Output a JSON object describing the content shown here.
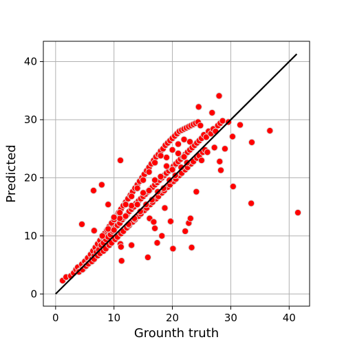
{
  "chart_data": {
    "type": "scatter",
    "title": "",
    "xlabel": "Grounth truth",
    "ylabel": "Predicted",
    "xlim": [
      -2.1,
      43.5
    ],
    "ylim": [
      -2.1,
      43.5
    ],
    "xticks": [
      0,
      10,
      20,
      30,
      40
    ],
    "yticks": [
      0,
      10,
      20,
      30,
      40
    ],
    "grid": true,
    "point_color": "#ff0000",
    "point_edge_color": "#d9d9d9",
    "line_color": "#000000",
    "reference_line": {
      "x": [
        0,
        41.3
      ],
      "y": [
        0,
        41.3
      ]
    },
    "points": [
      [
        1.2,
        2.3
      ],
      [
        1.8,
        2.9
      ],
      [
        2.6,
        3.1
      ],
      [
        3.1,
        3.6
      ],
      [
        3.5,
        4.2
      ],
      [
        3.8,
        4.6
      ],
      [
        4.2,
        4.0
      ],
      [
        4.5,
        5.1
      ],
      [
        4.8,
        4.4
      ],
      [
        5.0,
        5.6
      ],
      [
        5.3,
        5.0
      ],
      [
        5.5,
        6.2
      ],
      [
        5.8,
        5.4
      ],
      [
        6.0,
        6.8
      ],
      [
        6.2,
        6.0
      ],
      [
        6.4,
        7.4
      ],
      [
        6.6,
        6.5
      ],
      [
        6.8,
        8.0
      ],
      [
        7.0,
        7.2
      ],
      [
        7.2,
        8.6
      ],
      [
        7.4,
        7.6
      ],
      [
        7.6,
        9.2
      ],
      [
        7.8,
        8.4
      ],
      [
        8.0,
        9.8
      ],
      [
        8.2,
        8.8
      ],
      [
        8.4,
        10.4
      ],
      [
        8.6,
        9.4
      ],
      [
        8.8,
        11.0
      ],
      [
        9.0,
        9.8
      ],
      [
        9.2,
        11.6
      ],
      [
        9.4,
        10.2
      ],
      [
        9.6,
        12.2
      ],
      [
        9.8,
        10.8
      ],
      [
        10.0,
        12.8
      ],
      [
        10.2,
        11.4
      ],
      [
        10.4,
        13.4
      ],
      [
        10.6,
        11.8
      ],
      [
        10.8,
        14.0
      ],
      [
        11.0,
        12.2
      ],
      [
        11.2,
        14.6
      ],
      [
        11.4,
        12.8
      ],
      [
        11.6,
        15.2
      ],
      [
        11.8,
        13.2
      ],
      [
        12.0,
        15.8
      ],
      [
        12.2,
        13.6
      ],
      [
        12.4,
        16.4
      ],
      [
        12.6,
        14.2
      ],
      [
        12.8,
        17.0
      ],
      [
        13.0,
        14.6
      ],
      [
        13.2,
        17.6
      ],
      [
        13.4,
        15.0
      ],
      [
        13.6,
        18.2
      ],
      [
        13.8,
        15.6
      ],
      [
        14.0,
        18.8
      ],
      [
        14.2,
        16.0
      ],
      [
        14.4,
        19.4
      ],
      [
        14.6,
        16.4
      ],
      [
        14.8,
        20.0
      ],
      [
        15.0,
        16.8
      ],
      [
        15.2,
        20.6
      ],
      [
        15.4,
        17.2
      ],
      [
        15.6,
        21.2
      ],
      [
        15.8,
        17.6
      ],
      [
        16.0,
        21.8
      ],
      [
        16.2,
        18.0
      ],
      [
        16.4,
        22.4
      ],
      [
        16.6,
        18.4
      ],
      [
        16.8,
        23.0
      ],
      [
        17.0,
        18.8
      ],
      [
        17.2,
        23.6
      ],
      [
        17.4,
        19.2
      ],
      [
        17.6,
        24.0
      ],
      [
        17.8,
        19.6
      ],
      [
        18.0,
        24.6
      ],
      [
        18.2,
        20.0
      ],
      [
        18.4,
        25.0
      ],
      [
        18.6,
        20.4
      ],
      [
        18.8,
        25.6
      ],
      [
        19.0,
        20.8
      ],
      [
        19.2,
        26.0
      ],
      [
        19.4,
        21.2
      ],
      [
        19.6,
        26.4
      ],
      [
        19.8,
        21.6
      ],
      [
        20.0,
        26.8
      ],
      [
        20.2,
        22.0
      ],
      [
        20.4,
        27.2
      ],
      [
        20.6,
        22.4
      ],
      [
        20.8,
        27.6
      ],
      [
        21.0,
        22.8
      ],
      [
        21.2,
        28.0
      ],
      [
        21.4,
        23.2
      ],
      [
        21.6,
        28.2
      ],
      [
        21.8,
        23.6
      ],
      [
        22.0,
        28.4
      ],
      [
        22.2,
        24.0
      ],
      [
        22.4,
        28.6
      ],
      [
        22.6,
        24.4
      ],
      [
        22.8,
        28.8
      ],
      [
        23.0,
        24.8
      ],
      [
        23.2,
        29.0
      ],
      [
        23.4,
        25.2
      ],
      [
        23.6,
        29.2
      ],
      [
        23.8,
        25.6
      ],
      [
        24.0,
        29.4
      ],
      [
        24.2,
        26.0
      ],
      [
        24.4,
        29.6
      ],
      [
        24.6,
        26.4
      ],
      [
        24.8,
        29.0
      ],
      [
        25.0,
        26.8
      ],
      [
        25.4,
        27.4
      ],
      [
        25.8,
        27.0
      ],
      [
        26.2,
        28.0
      ],
      [
        26.6,
        27.6
      ],
      [
        27.0,
        28.4
      ],
      [
        27.4,
        28.0
      ],
      [
        27.8,
        29.0
      ],
      [
        28.2,
        29.4
      ],
      [
        28.6,
        29.8
      ],
      [
        29.0,
        25.0
      ],
      [
        4.0,
        3.8
      ],
      [
        4.6,
        4.2
      ],
      [
        5.2,
        4.8
      ],
      [
        5.6,
        5.2
      ],
      [
        6.2,
        5.6
      ],
      [
        6.6,
        6.0
      ],
      [
        7.2,
        6.6
      ],
      [
        7.6,
        7.0
      ],
      [
        8.2,
        7.4
      ],
      [
        8.6,
        7.8
      ],
      [
        9.2,
        8.4
      ],
      [
        9.6,
        8.8
      ],
      [
        10.2,
        9.4
      ],
      [
        10.6,
        9.8
      ],
      [
        11.2,
        10.4
      ],
      [
        11.6,
        10.8
      ],
      [
        12.2,
        11.4
      ],
      [
        12.6,
        11.8
      ],
      [
        13.2,
        12.4
      ],
      [
        13.6,
        12.8
      ],
      [
        14.2,
        13.4
      ],
      [
        14.6,
        13.8
      ],
      [
        15.2,
        14.4
      ],
      [
        15.6,
        14.8
      ],
      [
        16.2,
        15.4
      ],
      [
        16.6,
        15.8
      ],
      [
        17.2,
        16.4
      ],
      [
        17.6,
        16.8
      ],
      [
        18.2,
        17.4
      ],
      [
        18.6,
        17.8
      ],
      [
        19.2,
        18.4
      ],
      [
        19.6,
        18.8
      ],
      [
        20.2,
        19.4
      ],
      [
        20.6,
        19.8
      ],
      [
        21.2,
        20.4
      ],
      [
        21.6,
        20.8
      ],
      [
        22.2,
        21.4
      ],
      [
        22.6,
        21.8
      ],
      [
        23.2,
        22.4
      ],
      [
        23.6,
        22.8
      ],
      [
        24.2,
        23.4
      ],
      [
        24.6,
        23.8
      ],
      [
        25.2,
        24.4
      ],
      [
        25.6,
        24.8
      ],
      [
        8.0,
        10.0
      ],
      [
        9.0,
        11.2
      ],
      [
        10.0,
        11.0
      ],
      [
        11.0,
        13.0
      ],
      [
        12.0,
        13.4
      ],
      [
        13.0,
        15.2
      ],
      [
        14.0,
        15.4
      ],
      [
        15.0,
        17.4
      ],
      [
        16.0,
        17.8
      ],
      [
        17.0,
        19.6
      ],
      [
        18.0,
        20.2
      ],
      [
        19.0,
        22.0
      ],
      [
        20.0,
        21.4
      ],
      [
        21.0,
        24.2
      ],
      [
        22.0,
        23.6
      ],
      [
        23.0,
        26.2
      ],
      [
        12.5,
        12.0
      ],
      [
        13.5,
        13.0
      ],
      [
        14.5,
        14.2
      ],
      [
        15.5,
        15.4
      ],
      [
        16.5,
        16.2
      ],
      [
        17.5,
        17.6
      ],
      [
        18.5,
        18.2
      ],
      [
        19.5,
        19.6
      ],
      [
        20.5,
        20.4
      ],
      [
        21.5,
        21.8
      ],
      [
        22.5,
        22.6
      ],
      [
        19.0,
        23.5
      ],
      [
        20.0,
        24.8
      ],
      [
        21.0,
        25.8
      ],
      [
        22.0,
        26.6
      ],
      [
        17.0,
        22.6
      ],
      [
        18.0,
        23.8
      ],
      [
        16.0,
        21.0
      ],
      [
        15.0,
        19.6
      ],
      [
        14.0,
        18.2
      ],
      [
        13.0,
        16.8
      ],
      [
        12.0,
        15.4
      ],
      [
        11.0,
        14.0
      ],
      [
        10.0,
        13.2
      ],
      [
        4.5,
        12.0
      ],
      [
        6.5,
        17.8
      ],
      [
        6.6,
        10.9
      ],
      [
        7.9,
        18.8
      ],
      [
        9.0,
        15.4
      ],
      [
        11.1,
        23.0
      ],
      [
        11.1,
        8.6
      ],
      [
        11.2,
        8.1
      ],
      [
        11.3,
        5.7
      ],
      [
        13.0,
        8.4
      ],
      [
        15.8,
        6.3
      ],
      [
        17.4,
        8.8
      ],
      [
        17.0,
        11.3
      ],
      [
        16.1,
        13.0
      ],
      [
        16.8,
        12.4
      ],
      [
        18.2,
        10.0
      ],
      [
        18.7,
        14.8
      ],
      [
        19.7,
        12.5
      ],
      [
        20.1,
        7.8
      ],
      [
        22.2,
        10.8
      ],
      [
        22.8,
        12.2
      ],
      [
        23.1,
        13.0
      ],
      [
        23.3,
        8.0
      ],
      [
        24.1,
        17.6
      ],
      [
        24.5,
        32.2
      ],
      [
        26.8,
        31.2
      ],
      [
        28.0,
        34.1
      ],
      [
        28.1,
        22.8
      ],
      [
        28.3,
        21.3
      ],
      [
        30.3,
        27.1
      ],
      [
        30.4,
        18.5
      ],
      [
        31.6,
        29.1
      ],
      [
        33.5,
        15.6
      ],
      [
        33.6,
        26.1
      ],
      [
        36.7,
        28.1
      ],
      [
        41.5,
        14.0
      ],
      [
        29.6,
        29.6
      ],
      [
        27.2,
        25.2
      ],
      [
        26.0,
        24.4
      ],
      [
        25.0,
        23.0
      ]
    ]
  }
}
